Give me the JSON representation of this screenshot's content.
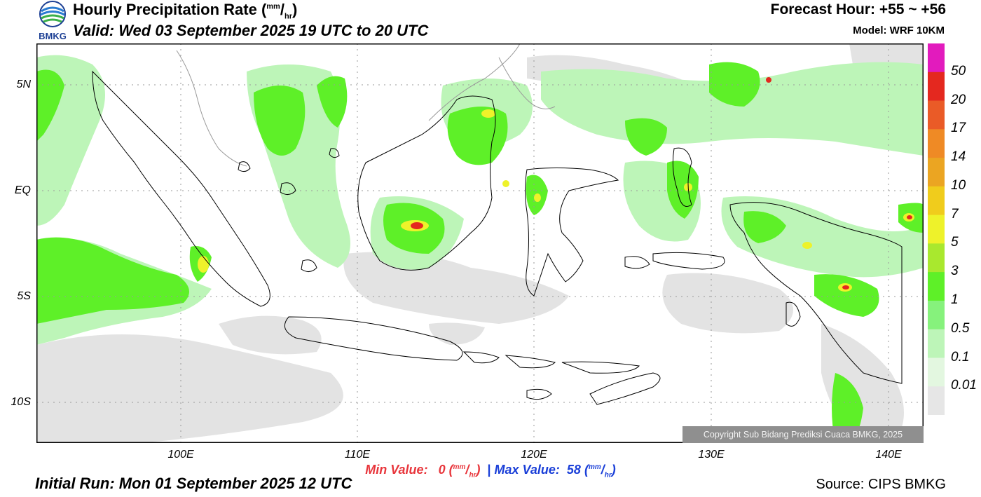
{
  "header": {
    "title_text": "Hourly Precipitation Rate (",
    "title_unit_num": "mm",
    "title_unit_den": "hr",
    "title_close": ")",
    "valid": "Valid: Wed 03 September 2025 19 UTC to 20 UTC",
    "forecast_hour": "Forecast Hour: +55 ~ +56",
    "model": "Model: WRF 10KM"
  },
  "logo": {
    "text": "BMKG",
    "icon": "bmkg-logo-icon"
  },
  "footer": {
    "min_label": "Min Value:",
    "min_value": "0",
    "max_label": "Max Value:",
    "max_value": "58",
    "unit_num": "mm",
    "unit_den": "hr",
    "separator": "|",
    "initial_run": "Initial Run: Mon 01 September 2025 12 UTC",
    "source": "Source: CIPS BMKG"
  },
  "copyright": "Copyright Sub Bidang Prediksi Cuaca BMKG, 2025",
  "axes": {
    "y_ticks": [
      "5N",
      "EQ",
      "5S",
      "10S"
    ],
    "x_ticks": [
      "100E",
      "110E",
      "120E",
      "130E",
      "140E"
    ]
  },
  "colorbar": {
    "labels": [
      "50",
      "20",
      "17",
      "14",
      "10",
      "7",
      "5",
      "3",
      "1",
      "0.5",
      "0.1",
      "0.01"
    ],
    "colors": [
      "#e21bbd",
      "#e4281f",
      "#ea5b27",
      "#ef8a25",
      "#eba522",
      "#f0cc1c",
      "#eef22a",
      "#a9e82e",
      "#5ef028",
      "#86f27c",
      "#bdf5b8",
      "#e3f7e0",
      "#e6e6e6"
    ]
  },
  "legend_colors": {
    "rain_light": "#e3e3e3",
    "rain_green": "#5ef028",
    "rain_heavy": "#e4281f",
    "land_border": "#000000",
    "neighbor_border": "#9a9a9a",
    "grid": "#9a9a9a"
  }
}
